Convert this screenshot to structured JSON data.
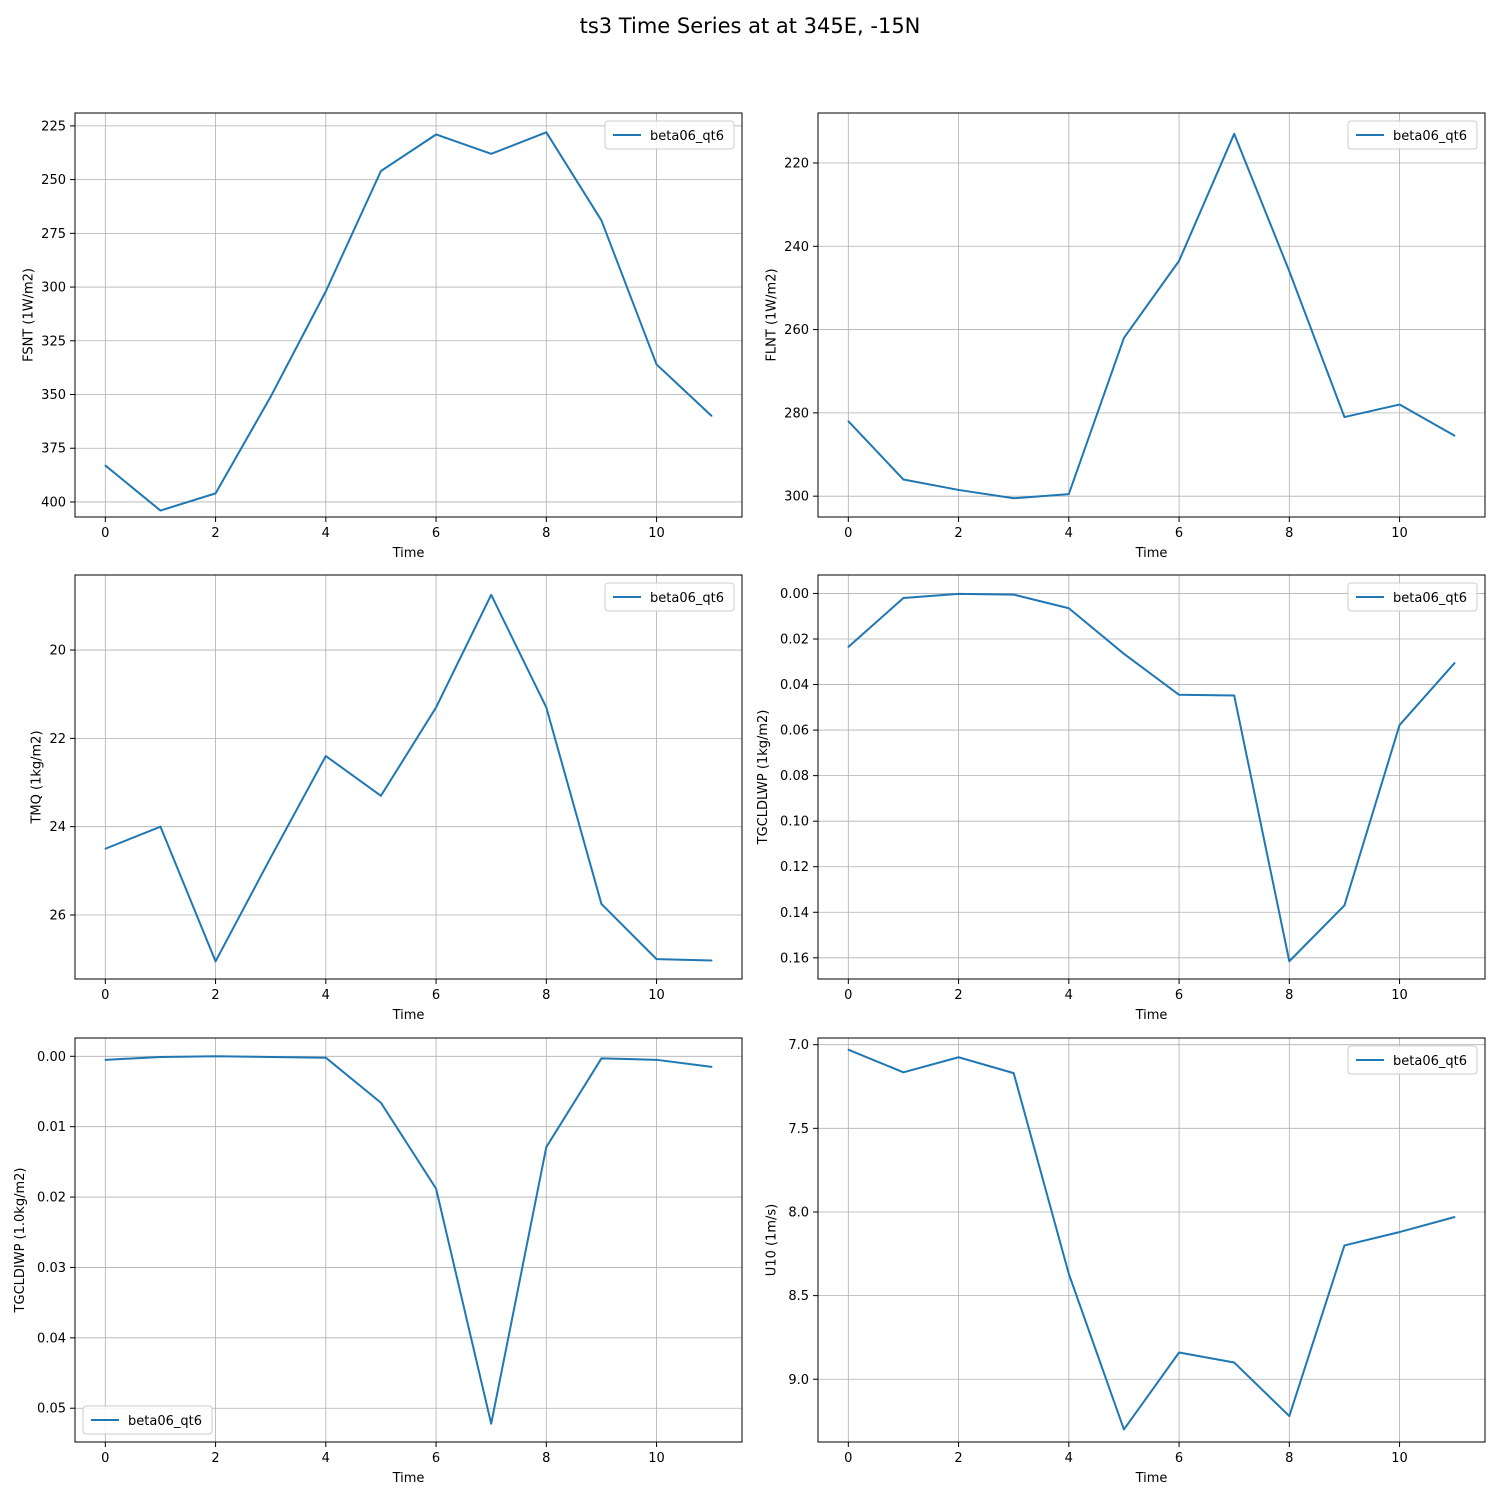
{
  "figure": {
    "title": "ts3 Time Series at at 345E, -15N"
  },
  "colors": {
    "series": "#1f77b4",
    "grid": "#b0b0b0",
    "axes": "#000000",
    "legend_border": "#cccccc"
  },
  "chart_data": [
    {
      "type": "line",
      "xlabel": "Time",
      "ylabel": "FSNT (1W/m2)",
      "xlim": [
        -0.55,
        11.55
      ],
      "ylim": [
        407,
        219
      ],
      "y_inverted": true,
      "xticks": [
        0,
        2,
        4,
        6,
        8,
        10
      ],
      "yticks": [
        225,
        250,
        275,
        300,
        325,
        350,
        375,
        400
      ],
      "ytick_decimals": 0,
      "grid": true,
      "legend_position": "upper-right",
      "series": [
        {
          "name": "beta06_qt6",
          "x": [
            0,
            1,
            2,
            3,
            4,
            5,
            6,
            7,
            8,
            9,
            10,
            11
          ],
          "y": [
            383,
            404,
            396,
            351,
            302,
            246,
            229,
            238,
            228,
            269,
            336,
            360
          ]
        }
      ]
    },
    {
      "type": "line",
      "xlabel": "Time",
      "ylabel": "FLNT (1W/m2)",
      "xlim": [
        -0.55,
        11.55
      ],
      "ylim": [
        305,
        208
      ],
      "y_inverted": true,
      "xticks": [
        0,
        2,
        4,
        6,
        8,
        10
      ],
      "yticks": [
        220,
        240,
        260,
        280,
        300
      ],
      "ytick_decimals": 0,
      "grid": true,
      "legend_position": "upper-right",
      "series": [
        {
          "name": "beta06_qt6",
          "x": [
            0,
            1,
            2,
            3,
            4,
            5,
            6,
            7,
            8,
            9,
            10,
            11
          ],
          "y": [
            282,
            296,
            298.5,
            300.5,
            299.5,
            262,
            243.5,
            213,
            246,
            281,
            278,
            285.5
          ]
        }
      ]
    },
    {
      "type": "line",
      "xlabel": "Time",
      "ylabel": "TMQ (1kg/m2)",
      "xlim": [
        -0.55,
        11.55
      ],
      "ylim": [
        27.45,
        18.3
      ],
      "y_inverted": true,
      "xticks": [
        0,
        2,
        4,
        6,
        8,
        10
      ],
      "yticks": [
        20,
        22,
        24,
        26
      ],
      "ytick_decimals": 0,
      "grid": true,
      "legend_position": "upper-right",
      "series": [
        {
          "name": "beta06_qt6",
          "x": [
            0,
            1,
            2,
            3,
            4,
            5,
            6,
            7,
            8,
            9,
            10,
            11
          ],
          "y": [
            24.5,
            24.0,
            27.05,
            24.7,
            22.4,
            23.3,
            21.3,
            18.75,
            21.3,
            25.75,
            27.0,
            27.03
          ]
        }
      ]
    },
    {
      "type": "line",
      "xlabel": "Time",
      "ylabel": "TGCLDLWP (1kg/m2)",
      "xlim": [
        -0.55,
        11.55
      ],
      "ylim": [
        0.1693,
        -0.0081
      ],
      "y_inverted": true,
      "xticks": [
        0,
        2,
        4,
        6,
        8,
        10
      ],
      "yticks": [
        0.0,
        0.02,
        0.04,
        0.06,
        0.08,
        0.1,
        0.12,
        0.14,
        0.16
      ],
      "ytick_decimals": 2,
      "grid": true,
      "legend_position": "upper-right",
      "series": [
        {
          "name": "beta06_qt6",
          "x": [
            0,
            1,
            2,
            3,
            4,
            5,
            6,
            7,
            8,
            9,
            10,
            11
          ],
          "y": [
            0.0235,
            0.002,
            0.0002,
            0.0005,
            0.0065,
            0.0265,
            0.0445,
            0.0448,
            0.1615,
            0.137,
            0.0578,
            0.0305
          ]
        }
      ]
    },
    {
      "type": "line",
      "xlabel": "Time",
      "ylabel": "TGCLDIWP (1.0kg/m2)",
      "xlim": [
        -0.55,
        11.55
      ],
      "ylim": [
        0.0548,
        -0.0026
      ],
      "y_inverted": true,
      "xticks": [
        0,
        2,
        4,
        6,
        8,
        10
      ],
      "yticks": [
        0.0,
        0.01,
        0.02,
        0.03,
        0.04,
        0.05
      ],
      "ytick_decimals": 2,
      "grid": true,
      "legend_position": "lower-left",
      "series": [
        {
          "name": "beta06_qt6",
          "x": [
            0,
            1,
            2,
            3,
            4,
            5,
            6,
            7,
            8,
            9,
            10,
            11
          ],
          "y": [
            0.0005,
            0.0001,
            0.0,
            0.0001,
            0.0002,
            0.0066,
            0.0188,
            0.0522,
            0.0129,
            0.0003,
            0.0005,
            0.0015
          ]
        }
      ]
    },
    {
      "type": "line",
      "xlabel": "Time",
      "ylabel": "U10 (1m/s)",
      "xlim": [
        -0.55,
        11.55
      ],
      "ylim": [
        9.375,
        6.96
      ],
      "y_inverted": true,
      "xticks": [
        0,
        2,
        4,
        6,
        8,
        10
      ],
      "yticks": [
        7.0,
        7.5,
        8.0,
        8.5,
        9.0
      ],
      "ytick_decimals": 1,
      "grid": true,
      "legend_position": "upper-right",
      "series": [
        {
          "name": "beta06_qt6",
          "x": [
            0,
            1,
            2,
            3,
            4,
            5,
            6,
            7,
            8,
            9,
            10,
            11
          ],
          "y": [
            7.03,
            7.165,
            7.075,
            7.17,
            8.37,
            9.3,
            8.84,
            8.9,
            9.22,
            8.2,
            8.12,
            8.03
          ]
        }
      ]
    }
  ]
}
